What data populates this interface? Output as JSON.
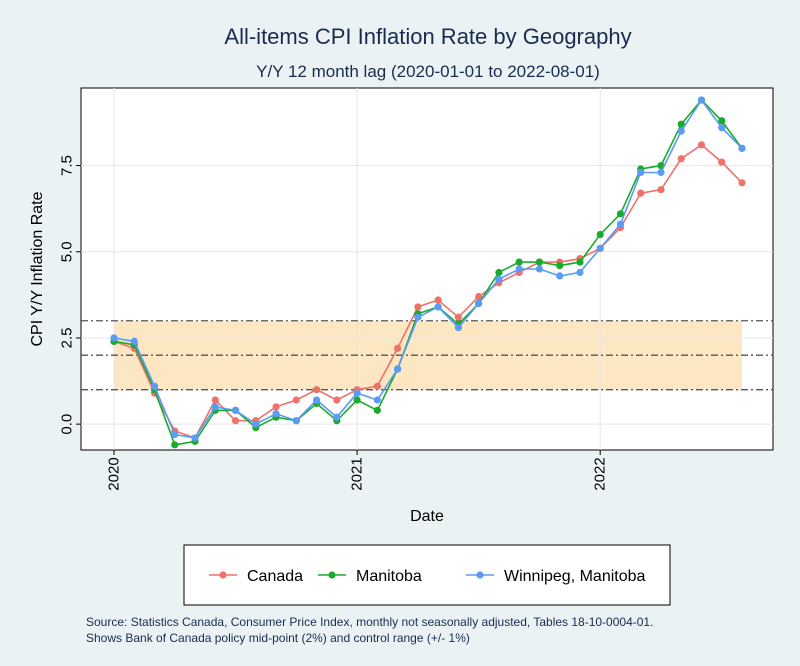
{
  "chart_data": {
    "type": "line",
    "title": "All-items CPI Inflation Rate by Geography",
    "subtitle": "Y/Y 12 month lag (2020-01-01 to 2022-08-01)",
    "xlabel": "Date",
    "ylabel": "CPI Y/Y Inflation Rate",
    "x_ticks": [
      "2020",
      "2021",
      "2022"
    ],
    "y_ticks": [
      "0.0",
      "2.5",
      "5.0",
      "7.5"
    ],
    "ylim": [
      -0.75,
      9.75
    ],
    "grid": true,
    "legend_position": "bottom",
    "x": [
      "2020-01",
      "2020-02",
      "2020-03",
      "2020-04",
      "2020-05",
      "2020-06",
      "2020-07",
      "2020-08",
      "2020-09",
      "2020-10",
      "2020-11",
      "2020-12",
      "2021-01",
      "2021-02",
      "2021-03",
      "2021-04",
      "2021-05",
      "2021-06",
      "2021-07",
      "2021-08",
      "2021-09",
      "2021-10",
      "2021-11",
      "2021-12",
      "2022-01",
      "2022-02",
      "2022-03",
      "2022-04",
      "2022-05",
      "2022-06",
      "2022-07",
      "2022-08"
    ],
    "series": [
      {
        "name": "Canada",
        "color": "#f0706a",
        "values": [
          2.4,
          2.2,
          0.9,
          -0.2,
          -0.4,
          0.7,
          0.1,
          0.1,
          0.5,
          0.7,
          1.0,
          0.7,
          1.0,
          1.1,
          2.2,
          3.4,
          3.6,
          3.1,
          3.7,
          4.1,
          4.4,
          4.7,
          4.7,
          4.8,
          5.1,
          5.7,
          6.7,
          6.8,
          7.7,
          8.1,
          7.6,
          7.0
        ]
      },
      {
        "name": "Manitoba",
        "color": "#1aab2e",
        "values": [
          2.4,
          2.3,
          1.0,
          -0.6,
          -0.5,
          0.4,
          0.4,
          -0.1,
          0.2,
          0.1,
          0.6,
          0.1,
          0.7,
          0.4,
          1.6,
          3.2,
          3.4,
          2.9,
          3.5,
          4.4,
          4.7,
          4.7,
          4.6,
          4.7,
          5.5,
          6.1,
          7.4,
          7.5,
          8.7,
          9.4,
          8.8,
          8.0
        ]
      },
      {
        "name": "Winnipeg, Manitoba",
        "color": "#5b9bf4",
        "values": [
          2.5,
          2.4,
          1.1,
          -0.3,
          -0.4,
          0.5,
          0.4,
          0.0,
          0.3,
          0.1,
          0.7,
          0.2,
          0.9,
          0.7,
          1.6,
          3.1,
          3.4,
          2.8,
          3.5,
          4.2,
          4.5,
          4.5,
          4.3,
          4.4,
          5.1,
          5.8,
          7.3,
          7.3,
          8.5,
          9.4,
          8.6,
          8.0
        ]
      }
    ],
    "reference_lines": [
      1,
      2,
      3
    ],
    "control_band": [
      1,
      3
    ],
    "band_color": "#fde6c2"
  },
  "source_note": {
    "line1": "Source: Statistics Canada, Consumer Price Index, monthly not seasonally adjusted, Tables 18-10-0004-01.",
    "line2": "Shows Bank of Canada policy mid-point (2%) and control range (+/- 1%)"
  }
}
